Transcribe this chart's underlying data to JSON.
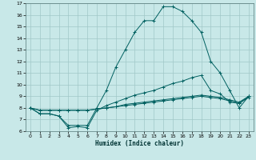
{
  "xlabel": "Humidex (Indice chaleur)",
  "bg_color": "#c8e8e8",
  "grid_color": "#a0c8c8",
  "line_color": "#006060",
  "xlim": [
    -0.5,
    23.5
  ],
  "ylim": [
    6,
    17
  ],
  "xticks": [
    0,
    1,
    2,
    3,
    4,
    5,
    6,
    7,
    8,
    9,
    10,
    11,
    12,
    13,
    14,
    15,
    16,
    17,
    18,
    19,
    20,
    21,
    22,
    23
  ],
  "yticks": [
    6,
    7,
    8,
    9,
    10,
    11,
    12,
    13,
    14,
    15,
    16,
    17
  ],
  "line1_y": [
    8.0,
    7.5,
    7.5,
    7.3,
    6.5,
    6.5,
    6.5,
    8.0,
    9.5,
    11.5,
    13.0,
    14.5,
    15.5,
    15.5,
    16.7,
    16.7,
    16.3,
    15.5,
    14.5,
    12.0,
    11.0,
    9.5,
    8.0,
    9.0
  ],
  "line2_y": [
    8.0,
    7.5,
    7.5,
    7.3,
    6.3,
    6.4,
    6.3,
    7.8,
    8.2,
    8.5,
    8.8,
    9.1,
    9.3,
    9.5,
    9.8,
    10.1,
    10.3,
    10.6,
    10.8,
    9.5,
    9.2,
    8.5,
    8.4,
    9.0
  ],
  "line3_y": [
    8.0,
    7.8,
    7.8,
    7.8,
    7.8,
    7.8,
    7.8,
    7.9,
    8.0,
    8.1,
    8.3,
    8.4,
    8.5,
    8.6,
    8.7,
    8.8,
    8.9,
    9.0,
    9.1,
    9.0,
    8.9,
    8.7,
    8.5,
    9.0
  ],
  "line4_y": [
    8.0,
    7.8,
    7.8,
    7.8,
    7.8,
    7.8,
    7.8,
    7.9,
    8.0,
    8.1,
    8.2,
    8.3,
    8.4,
    8.5,
    8.6,
    8.7,
    8.8,
    8.9,
    9.0,
    8.9,
    8.8,
    8.6,
    8.4,
    8.9
  ]
}
